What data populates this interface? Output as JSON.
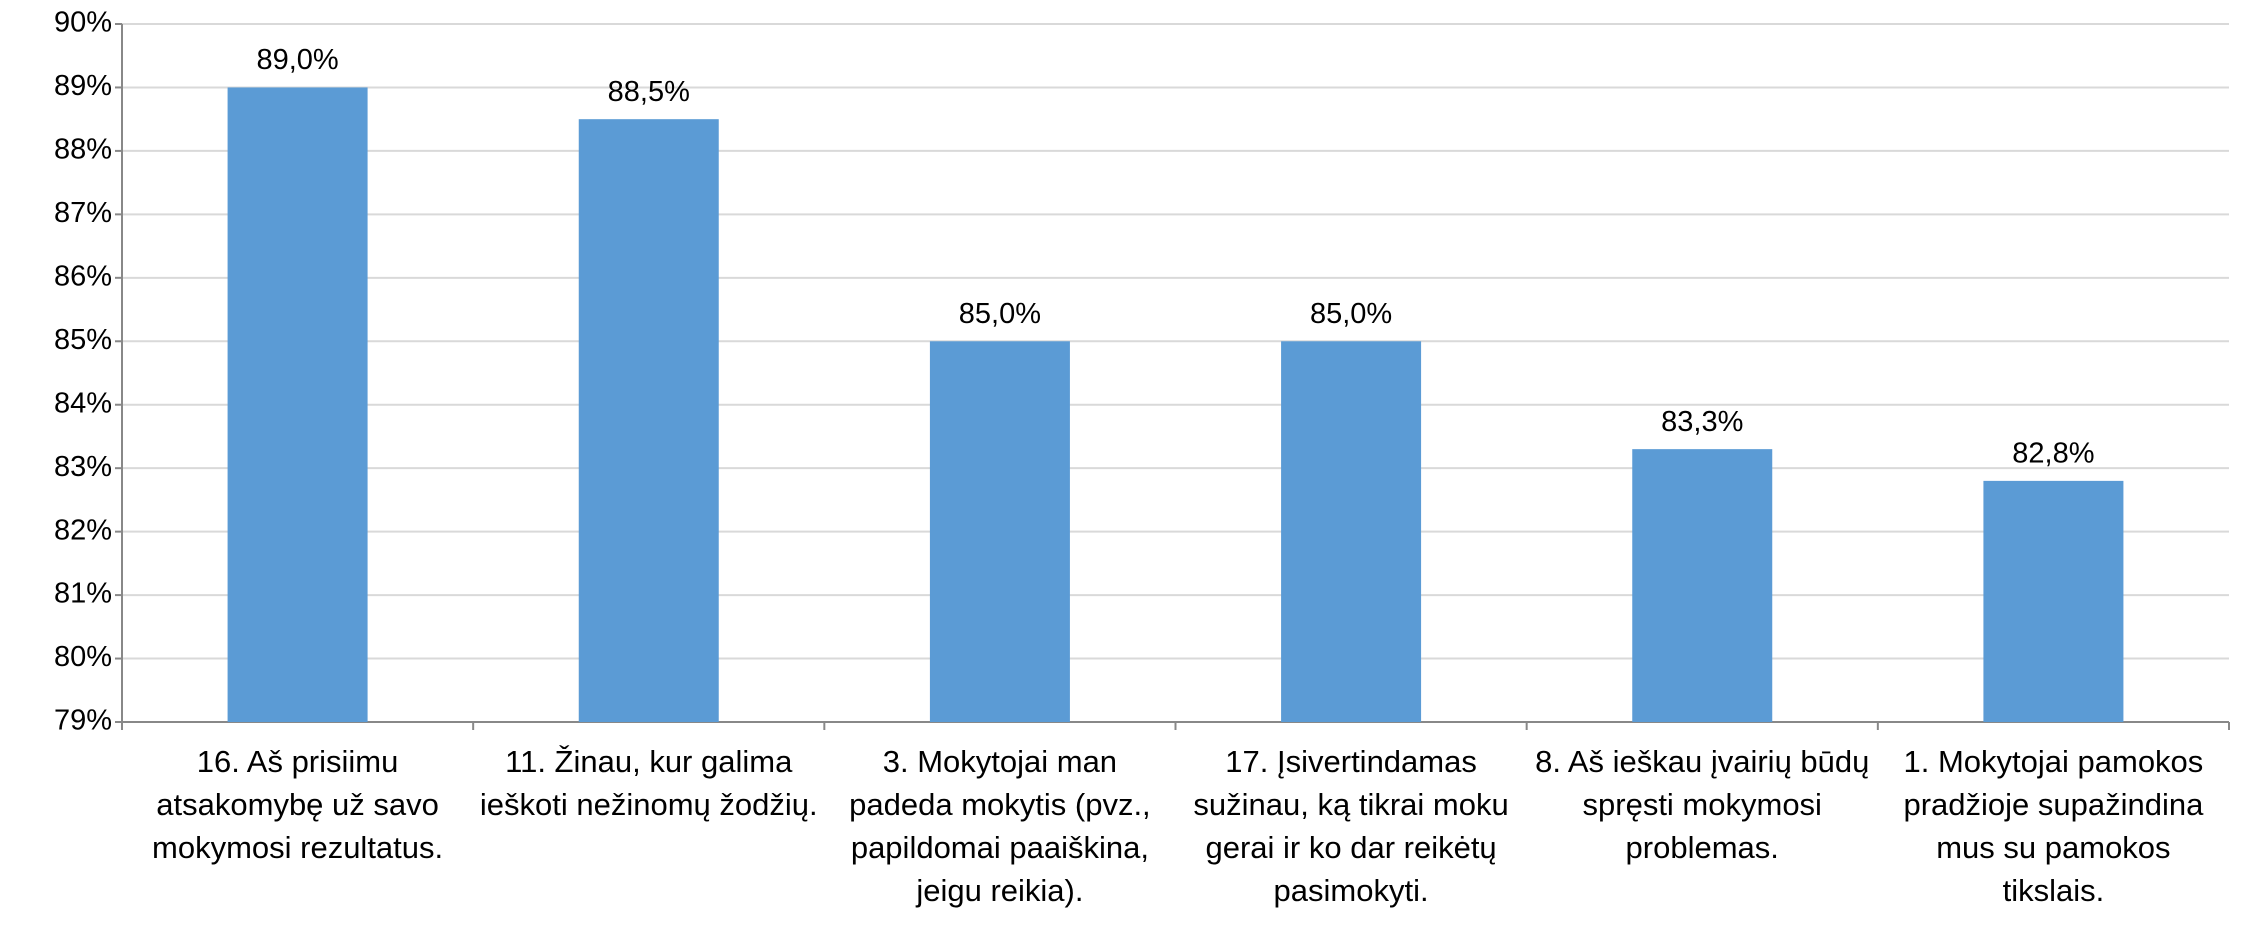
{
  "chart_data": {
    "type": "bar",
    "categories": [
      "16. Aš prisiimu atsakomybę už savo mokymosi rezultatus.",
      "11.  Žinau, kur galima ieškoti nežinomų žodžių.",
      "3. Mokytojai man padeda mokytis (pvz., papildomai paaiškina, jeigu reikia).",
      "17.  Įsivertindamas sužinau, ką tikrai moku gerai ir ko dar reikėtų pasimokyti.",
      "8.  Aš ieškau įvairių būdų spręsti mokymosi problemas.",
      "1.  Mokytojai pamokos pradžioje supažindina mus su pamokos tikslais."
    ],
    "values": [
      89.0,
      88.5,
      85.0,
      85.0,
      83.3,
      82.8
    ],
    "value_labels": [
      "89,0%",
      "88,5%",
      "85,0%",
      "85,0%",
      "83,3%",
      "82,8%"
    ],
    "color": "#5b9bd5",
    "ylim": [
      79,
      90
    ],
    "yticks": [
      {
        "value": 79,
        "label": "79%"
      },
      {
        "value": 80,
        "label": "80%"
      },
      {
        "value": 81,
        "label": "81%"
      },
      {
        "value": 82,
        "label": "82%"
      },
      {
        "value": 83,
        "label": "83%"
      },
      {
        "value": 84,
        "label": "84%"
      },
      {
        "value": 85,
        "label": "85%"
      },
      {
        "value": 86,
        "label": "86%"
      },
      {
        "value": 87,
        "label": "87%"
      },
      {
        "value": 88,
        "label": "88%"
      },
      {
        "value": 89,
        "label": "89%"
      },
      {
        "value": 90,
        "label": "90%"
      }
    ],
    "grid": true
  }
}
